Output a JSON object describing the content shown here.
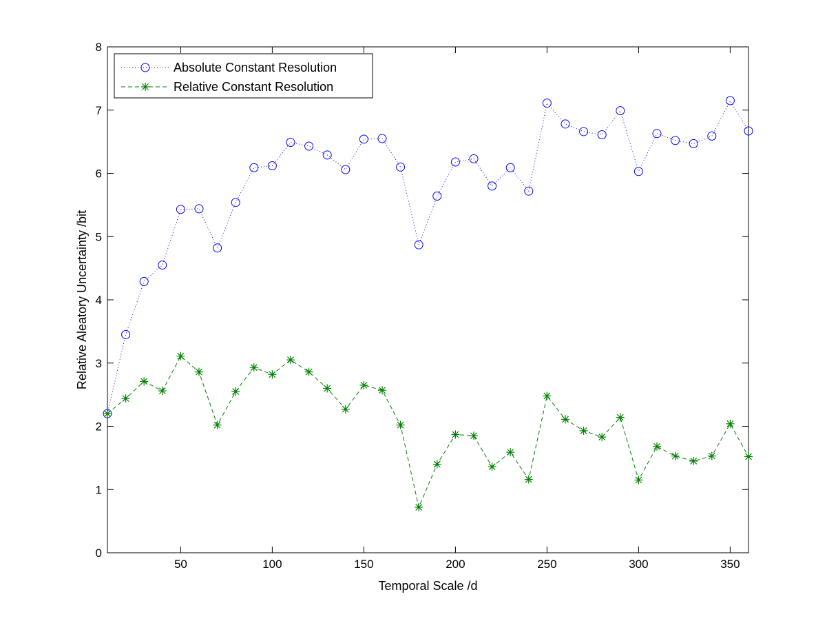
{
  "chart_data": {
    "type": "line",
    "title": "",
    "xlabel": "Temporal Scale /d",
    "ylabel": "Relative Aleatory Uncertainty /bit",
    "xlim": [
      10,
      360
    ],
    "ylim": [
      0,
      8
    ],
    "xticks": [
      50,
      100,
      150,
      200,
      250,
      300,
      350
    ],
    "yticks": [
      0,
      1,
      2,
      3,
      4,
      5,
      6,
      7,
      8
    ],
    "grid": false,
    "legend_position": "top-left",
    "x": [
      10,
      20,
      30,
      40,
      50,
      60,
      70,
      80,
      90,
      100,
      110,
      120,
      130,
      140,
      150,
      160,
      170,
      180,
      190,
      200,
      210,
      220,
      230,
      240,
      250,
      260,
      270,
      280,
      290,
      300,
      310,
      320,
      330,
      340,
      350,
      360
    ],
    "series": [
      {
        "name": "Absolute Constant Resolution",
        "color": "#0000ff",
        "line_style": "dotted",
        "marker": "circle",
        "values": [
          2.2,
          3.45,
          4.29,
          4.55,
          5.43,
          5.44,
          4.82,
          5.54,
          6.09,
          6.12,
          6.49,
          6.43,
          6.29,
          6.06,
          6.54,
          6.55,
          6.1,
          4.87,
          5.64,
          6.18,
          6.23,
          5.8,
          6.09,
          5.72,
          7.11,
          6.78,
          6.66,
          6.61,
          6.99,
          6.03,
          6.63,
          6.52,
          6.47,
          6.59,
          7.15,
          6.67
        ]
      },
      {
        "name": "Relative Constant Resolution",
        "color": "#008000",
        "line_style": "dashed",
        "marker": "asterisk",
        "values": [
          2.2,
          2.44,
          2.71,
          2.56,
          3.11,
          2.86,
          2.02,
          2.55,
          2.93,
          2.82,
          3.05,
          2.86,
          2.6,
          2.27,
          2.65,
          2.57,
          2.02,
          0.72,
          1.4,
          1.87,
          1.85,
          1.36,
          1.59,
          1.16,
          2.48,
          2.11,
          1.93,
          1.83,
          2.14,
          1.15,
          1.68,
          1.53,
          1.45,
          1.53,
          2.04,
          1.52
        ]
      }
    ]
  }
}
